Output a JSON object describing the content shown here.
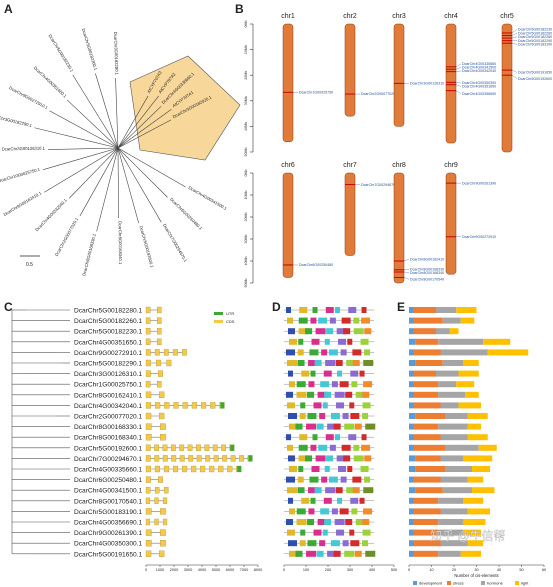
{
  "panels": {
    "a": "A",
    "b": "B",
    "c": "C",
    "d": "D",
    "e": "E"
  },
  "tree_a": {
    "scale_label": "0.5",
    "highlight_color": "#f7d79a",
    "highlighted_leaves": [
      "AtCYP707A3",
      "AtCYP707A2",
      "DcarChr4G00335660.1",
      "AtCYP707A1",
      "DcarChr3G00182020.1"
    ],
    "leaves": [
      "DcarChr3G00182280.1",
      "DcarChr5G00182260.1",
      "DcarChr5G00182230.1",
      "DcarChr4G00351650.1",
      "DcarChr9G00272910.1",
      "DcarChr3G00182290.1",
      "DcarChr3G00126310.1",
      "DcarChr1G00025750.1",
      "DcarChr8G00162410.1",
      "DcarChr4G00342040.1",
      "DcarChr2G00077020.1",
      "DcarChr8G00168330.1",
      "DcarChr8G00168340.1",
      "DcarChr5G00192600.1",
      "DcarChr7G00294670.1",
      "DcarChr6G00250480.1",
      "DcarChr4G00341500.1",
      "DcarChr8G00170540.1",
      "DcarChr5G00183190.1",
      "DcarChr9G00261390.1",
      "DcarChr4G00350300.1",
      "DcarChr5G00191650.1"
    ]
  },
  "chromosomes_b": {
    "bar_color": "#e07b39",
    "marker_color": "#cc0000",
    "label_color": "#1f4e9a",
    "ruler_ticks_top": [
      "0Mb",
      "10Mb",
      "20Mb",
      "30Mb",
      "40Mb",
      "50Mb"
    ],
    "ruler_ticks_bottom": [
      "0Mb",
      "10Mb",
      "20Mb",
      "30Mb",
      "40Mb",
      "50Mb"
    ],
    "chromosomes": [
      {
        "name": "chr1",
        "row": 0,
        "length_frac": 0.92,
        "genes": [
          {
            "label": "DcarChr1G00025750",
            "pos": 0.58
          }
        ]
      },
      {
        "name": "chr2",
        "row": 0,
        "length_frac": 0.72,
        "genes": [
          {
            "label": "DcarChr2G00077020",
            "pos": 0.76
          }
        ]
      },
      {
        "name": "chr3",
        "row": 0,
        "length_frac": 0.8,
        "genes": [
          {
            "label": "DcarChr3G00126310",
            "pos": 0.58
          }
        ]
      },
      {
        "name": "chr4",
        "row": 0,
        "length_frac": 0.93,
        "genes": [
          {
            "label": "DcarChr4G00335660",
            "pos": 0.36
          },
          {
            "label": "DcarChr4G00341500",
            "pos": 0.38
          },
          {
            "label": "DcarChr4G00342040",
            "pos": 0.4
          },
          {
            "label": "DcarChr4G00350300",
            "pos": 0.49
          },
          {
            "label": "DcarChr4G00351650",
            "pos": 0.51
          },
          {
            "label": "DcarChr4G00356690",
            "pos": 0.56
          }
        ]
      },
      {
        "name": "chr5",
        "row": 0,
        "length_frac": 1.0,
        "genes": [
          {
            "label": "DcarChr5G00182230",
            "pos": 0.07
          },
          {
            "label": "DcarChr5G00182260",
            "pos": 0.09
          },
          {
            "label": "DcarChr5G00182280",
            "pos": 0.11
          },
          {
            "label": "DcarChr5G00182290",
            "pos": 0.13
          },
          {
            "label": "DcarChr5G00183190",
            "pos": 0.15
          },
          {
            "label": "DcarChr5G00191650",
            "pos": 0.36
          },
          {
            "label": "DcarChr5G00192600",
            "pos": 0.4
          }
        ]
      },
      {
        "name": "chr6",
        "row": 1,
        "length_frac": 0.95,
        "genes": [
          {
            "label": "DcarChr6G00250480",
            "pos": 0.88
          }
        ]
      },
      {
        "name": "chr7",
        "row": 1,
        "length_frac": 0.75,
        "genes": [
          {
            "label": "DcarChr7G00294670",
            "pos": 0.14
          }
        ]
      },
      {
        "name": "chr8",
        "row": 1,
        "length_frac": 1.0,
        "genes": [
          {
            "label": "DcarChr8G00162410",
            "pos": 0.8
          },
          {
            "label": "DcarChr8G00168330",
            "pos": 0.88
          },
          {
            "label": "DcarChr8G00168340",
            "pos": 0.9
          },
          {
            "label": "DcarChr8G00170540",
            "pos": 0.95
          }
        ]
      },
      {
        "name": "chr9",
        "row": 1,
        "length_frac": 0.92,
        "genes": [
          {
            "label": "DcarChr9G00261390",
            "pos": 0.1
          },
          {
            "label": "DcarChr9G00272910",
            "pos": 0.63
          }
        ]
      }
    ]
  },
  "gene_list_c": {
    "legend": [
      {
        "label": "UTR",
        "color": "#3aa935"
      },
      {
        "label": "CDS",
        "color": "#f2c94c"
      }
    ],
    "axis_ticks": [
      "0",
      "1000",
      "2000",
      "3000",
      "4000",
      "5000",
      "6000",
      "7000",
      "8000"
    ],
    "genes": [
      "DcarChr5G00182280.1",
      "DcarChr5G00182260.1",
      "DcarChr5G00182230.1",
      "DcarChr4G00351650.1",
      "DcarChr9G00272910.1",
      "DcarChr5G00182290.1",
      "DcarChr3G00126310.1",
      "DcarChr1G00025750.1",
      "DcarChr8G00162410.1",
      "DcarChr4G00342040.1",
      "DcarChr2G00077020.1",
      "DcarChr8G00168330.1",
      "DcarChr8G00168340.1",
      "DcarChr5G00192600.1",
      "DcarChr7G00294670.1",
      "DcarChr4G00335660.1",
      "DcarChr6G00250480.1",
      "DcarChr4G00341500.1",
      "DcarChr8G00170540.1",
      "DcarChr5G00183190.1",
      "DcarChr4G00356690.1",
      "DcarChr9G00261390.1",
      "DcarChr4G00350300.1",
      "DcarChr5G00191650.1"
    ],
    "gene_lengths": [
      1100,
      1100,
      1100,
      1100,
      2900,
      1800,
      1200,
      1100,
      1300,
      5600,
      1300,
      1400,
      1400,
      6300,
      7600,
      6800,
      1200,
      1600,
      1500,
      1400,
      1500,
      1400,
      1400,
      1300
    ]
  },
  "motifs_d": {
    "axis_ticks": [
      "0",
      "100",
      "200",
      "300",
      "400",
      "500"
    ],
    "motif_colors": [
      "#2f4fb0",
      "#e0b82a",
      "#3aa935",
      "#d92f8c",
      "#45c7d6",
      "#8a6bd1",
      "#d22b2b",
      "#9bd23a",
      "#f28c28",
      "#6d8f2a"
    ]
  },
  "elements_e": {
    "xlabel": "Number of cis-elements",
    "axis_ticks": [
      "0",
      "10",
      "20",
      "30",
      "40",
      "50",
      "60"
    ],
    "legend": [
      {
        "label": "development",
        "color": "#5b9bd5"
      },
      {
        "label": "stress",
        "color": "#ed7d31"
      },
      {
        "label": "hormone",
        "color": "#a5a5a5"
      },
      {
        "label": "light",
        "color": "#ffc000"
      }
    ]
  },
  "chart_data": {
    "type": "bar",
    "xlabel": "Number of cis-elements",
    "ylabel": "",
    "xlim": [
      0,
      60
    ],
    "categories": [
      "DcarChr5G00182280.1",
      "DcarChr5G00182260.1",
      "DcarChr5G00182230.1",
      "DcarChr4G00351650.1",
      "DcarChr9G00272910.1",
      "DcarChr5G00182290.1",
      "DcarChr3G00126310.1",
      "DcarChr1G00025750.1",
      "DcarChr8G00162410.1",
      "DcarChr4G00342040.1",
      "DcarChr2G00077020.1",
      "DcarChr8G00168330.1",
      "DcarChr8G00168340.1",
      "DcarChr5G00192600.1",
      "DcarChr7G00294670.1",
      "DcarChr4G00335660.1",
      "DcarChr6G00250480.1",
      "DcarChr4G00341500.1",
      "DcarChr8G00170540.1",
      "DcarChr5G00183190.1",
      "DcarChr4G00356690.1",
      "DcarChr9G00261390.1",
      "DcarChr4G00350300.1",
      "DcarChr5G00191650.1"
    ],
    "series": [
      {
        "name": "development",
        "values": [
          2,
          2,
          2,
          3,
          2,
          3,
          2,
          2,
          2,
          2,
          3,
          2,
          2,
          2,
          3,
          3,
          2,
          3,
          2,
          2,
          2,
          2,
          2,
          2
        ]
      },
      {
        "name": "stress",
        "values": [
          10,
          13,
          10,
          10,
          12,
          12,
          10,
          11,
          11,
          12,
          13,
          11,
          12,
          14,
          11,
          13,
          12,
          12,
          11,
          12,
          11,
          11,
          12,
          11
        ]
      },
      {
        "name": "hormone",
        "values": [
          9,
          8,
          6,
          20,
          21,
          9,
          10,
          8,
          12,
          8,
          10,
          13,
          12,
          15,
          10,
          12,
          12,
          13,
          11,
          12,
          11,
          11,
          12,
          10
        ]
      },
      {
        "name": "light",
        "values": [
          9,
          6,
          4,
          12,
          18,
          7,
          9,
          8,
          6,
          10,
          9,
          6,
          9,
          8,
          13,
          8,
          7,
          10,
          9,
          10,
          10,
          8,
          7,
          9
        ]
      }
    ],
    "legend_position": "bottom"
  },
  "watermark": "知乎 @牛信帮"
}
